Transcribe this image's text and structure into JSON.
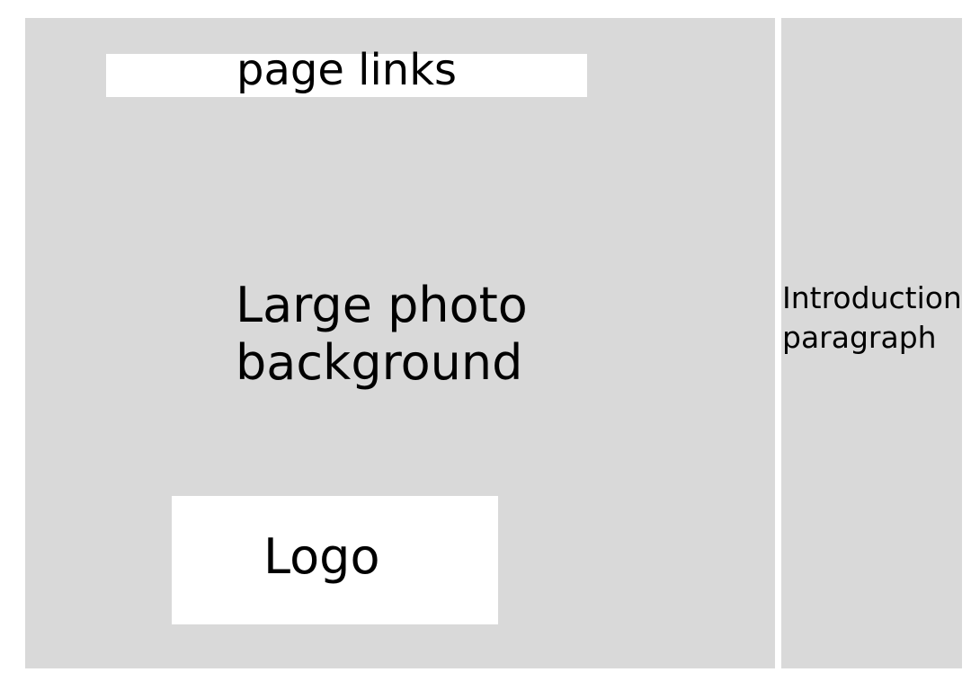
{
  "hero": {
    "page_links_label": "page links",
    "caption_lines": [
      "Large photo",
      "background"
    ],
    "logo_label": "Logo"
  },
  "intro": {
    "lines": [
      "Introduction",
      "paragraph"
    ]
  },
  "colors": {
    "panel_gray": "#d9d9d9",
    "box_white": "#ffffff",
    "text": "#000000"
  }
}
